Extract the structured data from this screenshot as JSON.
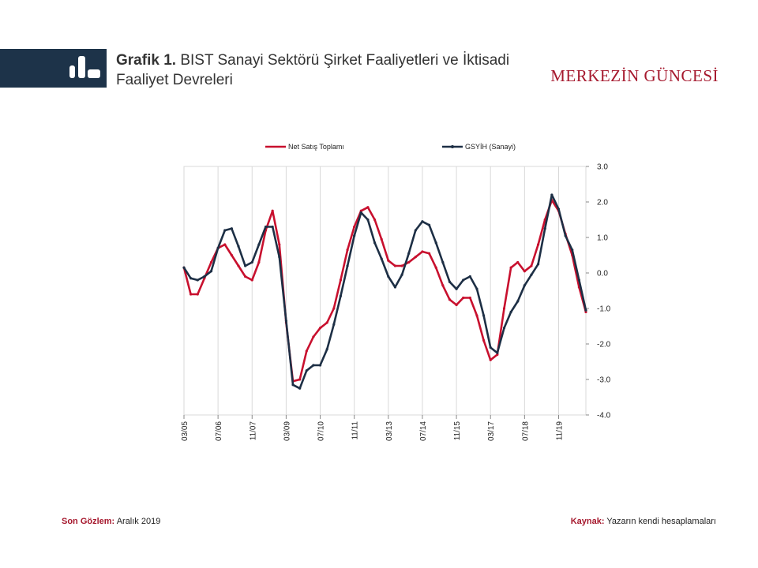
{
  "header": {
    "title_bold": "Grafik 1.",
    "title_text": "BIST Sanayi Sektörü Şirket Faaliyetleri ve İktisadi Faaliyet Devreleri",
    "brand": "MERKEZİN GÜNCESİ",
    "logo_icon": "bar-chart-icon"
  },
  "footer": {
    "last_obs_label": "Son Gözlem:",
    "last_obs_value": "Aralık 2019",
    "source_label": "Kaynak:",
    "source_value": "Yazarın kendi hesaplamaları"
  },
  "colors": {
    "band": "#1d3349",
    "red": "#c8102e",
    "navy": "#1d2f45",
    "brand": "#a6192e"
  },
  "chart_data": {
    "type": "line",
    "title": "",
    "xlabel": "",
    "ylabel": "",
    "ylim": [
      -4.0,
      3.0
    ],
    "y_ticks": [
      "3.0",
      "2.0",
      "1.0",
      "0.0",
      "-1.0",
      "-2.0",
      "-3.0",
      "-4.0"
    ],
    "y_axis_side": "right",
    "grid": "vertical",
    "legend_position": "top",
    "x_tick_labels": [
      "03/05",
      "07/06",
      "11/07",
      "03/09",
      "07/10",
      "11/11",
      "03/13",
      "07/14",
      "11/15",
      "03/17",
      "07/18",
      "11/19"
    ],
    "x_tick_index": [
      0,
      5,
      10,
      15,
      20,
      25,
      30,
      35,
      40,
      45,
      50,
      55
    ],
    "series": [
      {
        "name": "Net Satış Toplamı",
        "color": "#c8102e",
        "values": [
          0.15,
          -0.6,
          -0.6,
          -0.15,
          0.3,
          0.7,
          0.8,
          0.5,
          0.2,
          -0.1,
          -0.2,
          0.3,
          1.2,
          1.75,
          0.8,
          -1.4,
          -3.05,
          -3.0,
          -2.2,
          -1.8,
          -1.55,
          -1.4,
          -1.0,
          -0.2,
          0.65,
          1.3,
          1.75,
          1.85,
          1.5,
          0.95,
          0.35,
          0.2,
          0.2,
          0.3,
          0.45,
          0.6,
          0.55,
          0.15,
          -0.35,
          -0.75,
          -0.9,
          -0.7,
          -0.7,
          -1.2,
          -1.9,
          -2.45,
          -2.3,
          -1.0,
          0.15,
          0.3,
          0.05,
          0.2,
          0.8,
          1.5,
          2.05,
          1.75,
          1.1,
          0.5,
          -0.4,
          -1.1
        ]
      },
      {
        "name": "GSYİH (Sanayi)",
        "color": "#1d2f45",
        "values": [
          0.15,
          -0.15,
          -0.2,
          -0.1,
          0.05,
          0.7,
          1.2,
          1.25,
          0.75,
          0.2,
          0.3,
          0.8,
          1.3,
          1.3,
          0.45,
          -1.35,
          -3.15,
          -3.25,
          -2.75,
          -2.6,
          -2.6,
          -2.15,
          -1.45,
          -0.65,
          0.2,
          1.05,
          1.7,
          1.5,
          0.85,
          0.4,
          -0.1,
          -0.4,
          -0.05,
          0.55,
          1.2,
          1.45,
          1.35,
          0.85,
          0.3,
          -0.25,
          -0.45,
          -0.2,
          -0.1,
          -0.45,
          -1.2,
          -2.1,
          -2.25,
          -1.55,
          -1.1,
          -0.8,
          -0.35,
          -0.05,
          0.25,
          1.25,
          2.2,
          1.8,
          1.05,
          0.65,
          -0.2,
          -1.05
        ]
      }
    ]
  }
}
